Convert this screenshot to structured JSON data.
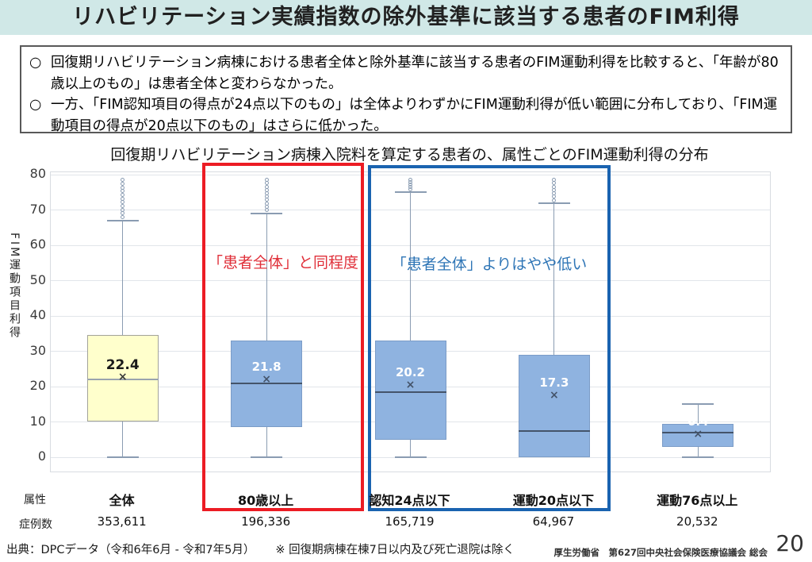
{
  "page": {
    "title": "リハビリテーション実績指数の除外基準に該当する患者のFIM利得",
    "page_number": "20"
  },
  "summary": {
    "bullet_marker": "○",
    "bullets": [
      "回復期リハビリテーション病棟における患者全体と除外基準に該当する患者のFIM運動利得を比較すると、「年齢が80歳以上のもの」は患者全体と変わらなかった。",
      "一方、「FIM認知項目の得点が24点以下のもの」は全体よりわずかにFIM運動利得が低い範囲に分布しており、「FIM運動項目の得点が20点以下のもの」はさらに低かった。"
    ]
  },
  "chart_data": {
    "type": "boxplot",
    "title": "回復期リハビリテーション病棟入院料を算定する患者の、属性ごとのFIM運動利得の分布",
    "ylabel": "FIM運動項目利得",
    "ylim": [
      0,
      80
    ],
    "ytick_interval": 10,
    "grid": true,
    "row_headers": {
      "attribute": "属性",
      "cases": "症例数"
    },
    "series": [
      {
        "label": "全体",
        "cases": "353,611",
        "mean": 22.4,
        "median": 22,
        "q1": 10,
        "q3": 34.5,
        "whisker_low": 0,
        "whisker_high": 67,
        "outliers_low": 68,
        "outliers_high": 78.5,
        "outlier_count": 11,
        "fill": "#ffffcc",
        "stroke": "#a3a39a",
        "accent": "#9aa4ae",
        "marker_color": "#3a3a3a",
        "label_color": "#1a1a1a"
      },
      {
        "label": "80歳以上",
        "cases": "196,336",
        "mean": 21.8,
        "median": 21,
        "q1": 8.5,
        "q3": 33,
        "whisker_low": 0,
        "whisker_high": 69,
        "outliers_low": 70,
        "outliers_high": 78.5,
        "outlier_count": 10,
        "fill": "#8fb3e0",
        "stroke": "#7b9cc7",
        "accent": "#44546a",
        "marker_color": "#44546a",
        "label_color": "#ffffff"
      },
      {
        "label": "認知24点以下",
        "cases": "165,719",
        "mean": 20.2,
        "median": 18.5,
        "q1": 5,
        "q3": 33,
        "whisker_low": 0,
        "whisker_high": 75,
        "outliers_low": 75.8,
        "outliers_high": 78.5,
        "outlier_count": 5,
        "fill": "#8fb3e0",
        "stroke": "#7b9cc7",
        "accent": "#44546a",
        "marker_color": "#44546a",
        "label_color": "#ffffff"
      },
      {
        "label": "運動20点以下",
        "cases": "64,967",
        "mean": 17.3,
        "median": 7.5,
        "q1": 0,
        "q3": 29,
        "whisker_low": 0,
        "whisker_high": 72,
        "outliers_low": 72.8,
        "outliers_high": 78.5,
        "outlier_count": 7,
        "fill": "#8fb3e0",
        "stroke": "#7b9cc7",
        "accent": "#44546a",
        "marker_color": "#44546a",
        "label_color": "#ffffff"
      },
      {
        "label": "運動76点以上",
        "cases": "20,532",
        "mean": 6.4,
        "median": 7,
        "q1": 3,
        "q3": 9.5,
        "whisker_low": 0,
        "whisker_high": 15,
        "outliers_low": 0,
        "outliers_high": 0,
        "outlier_count": 0,
        "fill": "#8fb3e0",
        "stroke": "#7b9cc7",
        "accent": "#44546a",
        "marker_color": "#44546a",
        "label_color": "#ffffff"
      }
    ],
    "annotations": [
      {
        "text": "「患者全体」と同程度",
        "color": "#e0303a"
      },
      {
        "text": "「患者全体」よりはやや低い",
        "color": "#2e75b6"
      }
    ],
    "highlights": [
      {
        "color": "#ec1c24",
        "around": "80歳以上"
      },
      {
        "color": "#1a63b0",
        "around": "認知24点以下・運動20点以下"
      }
    ]
  },
  "footer": {
    "source": "出典：DPCデータ（令和6年6月 - 令和7年5月）",
    "note": "※ 回復期病棟在棟7日以内及び死亡退院は除く",
    "org": "厚生労働省　第627回中央社会保険医療協議会 総会"
  },
  "colors": {
    "header_bg": "#d0e8e7",
    "grid": "#e1e5ea",
    "plot_border": "#d8dce1",
    "whisker": "#8a9cb2"
  }
}
